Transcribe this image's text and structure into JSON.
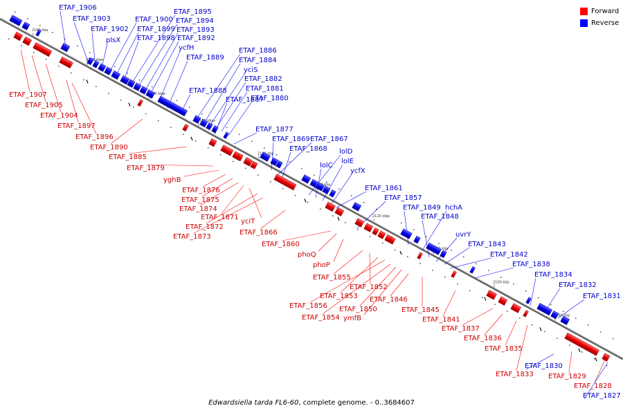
{
  "legend": {
    "forward_label": "Forward",
    "reverse_label": "Reverse",
    "forward_color": "#ff0000",
    "reverse_color": "#0000ff"
  },
  "caption": {
    "organism": "Edwardsiella tarda FL6-60",
    "rest": ", complete genome. - 0..3684607"
  },
  "ticks": [
    "2180 kbp",
    "2170 kbp",
    "2160 kbp",
    "2150 kbp",
    "2140 kbp",
    "2130 kbp",
    "2120 kbp",
    "2110 kbp",
    "2100 kbp",
    "2090 kbp"
  ],
  "reverse_genes": [
    "ETAF_1906",
    "ETAF_1903",
    "ETAF_1902",
    "plsX",
    "ETAF_1900",
    "ETAF_1899",
    "ETAF_1898",
    "ETAF_1895",
    "ETAF_1894",
    "ETAF_1893",
    "ETAF_1892",
    "ycfH",
    "ETAF_1889",
    "ETAF_1886",
    "ETAF_1884",
    "yciS",
    "ETAF_1882",
    "ETAF_1881",
    "ETAF_1888",
    "ETAF_1887",
    "ETAF_1880",
    "ETAF_1877",
    "ETAF_1869",
    "ETAF_1867",
    "ETAF_1868",
    "lolD",
    "lolC",
    "lolE",
    "ycfX",
    "ETAF_1861",
    "ETAF_1857",
    "ETAF_1849",
    "hchA",
    "ETAF_1848",
    "uvrY",
    "ETAF_1843",
    "ETAF_1842",
    "ETAF_1838",
    "ETAF_1834",
    "ETAF_1832",
    "ETAF_1831",
    "ETAF_1830",
    "ETAF_1827"
  ],
  "forward_genes": [
    "ETAF_1907",
    "ETAF_1905",
    "ETAF_1904",
    "ETAF_1897",
    "ETAF_1896",
    "ETAF_1890",
    "ETAF_1885",
    "ETAF_1879",
    "yghB",
    "ETAF_1876",
    "ETAF_1875",
    "ETAF_1874",
    "ETAF_1871",
    "yciT",
    "ETAF_1872",
    "ETAF_1873",
    "ETAF_1866",
    "ETAF_1860",
    "phoQ",
    "phoP",
    "ETAF_1855",
    "ETAF_1852",
    "ETAF_1853",
    "ETAF_1856",
    "ETAF_1854",
    "ETAF_1850",
    "ymfB",
    "ETAF_1846",
    "ETAF_1845",
    "ETAF_1841",
    "ETAF_1837",
    "ETAF_1836",
    "ETAF_1835",
    "ETAF_1833",
    "ETAF_1829",
    "ETAF_1828"
  ]
}
